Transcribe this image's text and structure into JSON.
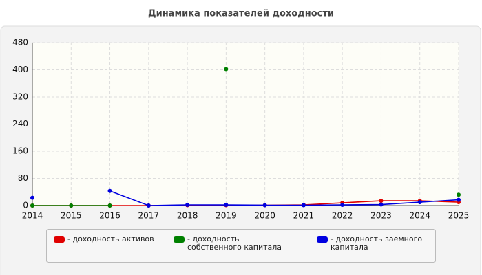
{
  "chart_data": {
    "type": "line",
    "title": "Динамика показателей доходности",
    "x": [
      2014,
      2015,
      2016,
      2017,
      2018,
      2019,
      2020,
      2021,
      2022,
      2023,
      2024,
      2025
    ],
    "xlim": [
      2014,
      2025
    ],
    "xticks": [
      2014,
      2015,
      2016,
      2017,
      2018,
      2019,
      2020,
      2021,
      2022,
      2023,
      2024,
      2025
    ],
    "ylim": [
      0,
      480
    ],
    "yticks": [
      0,
      80,
      160,
      240,
      320,
      400,
      480
    ],
    "grid": true,
    "series": [
      {
        "name": "- доходность активов",
        "color": "#e00000",
        "values": [
          0,
          0,
          0,
          0,
          1,
          1,
          1,
          2,
          8,
          14,
          14,
          10
        ]
      },
      {
        "name": "- доходность собственного капитала",
        "color": "#008000",
        "values": [
          0,
          0,
          0,
          null,
          null,
          402,
          null,
          null,
          null,
          null,
          null,
          32
        ]
      },
      {
        "name": "- доходность заемного капитала",
        "color": "#0000e0",
        "values": [
          23,
          null,
          43,
          0,
          2,
          2,
          1,
          1,
          2,
          3,
          10,
          17
        ]
      }
    ]
  }
}
